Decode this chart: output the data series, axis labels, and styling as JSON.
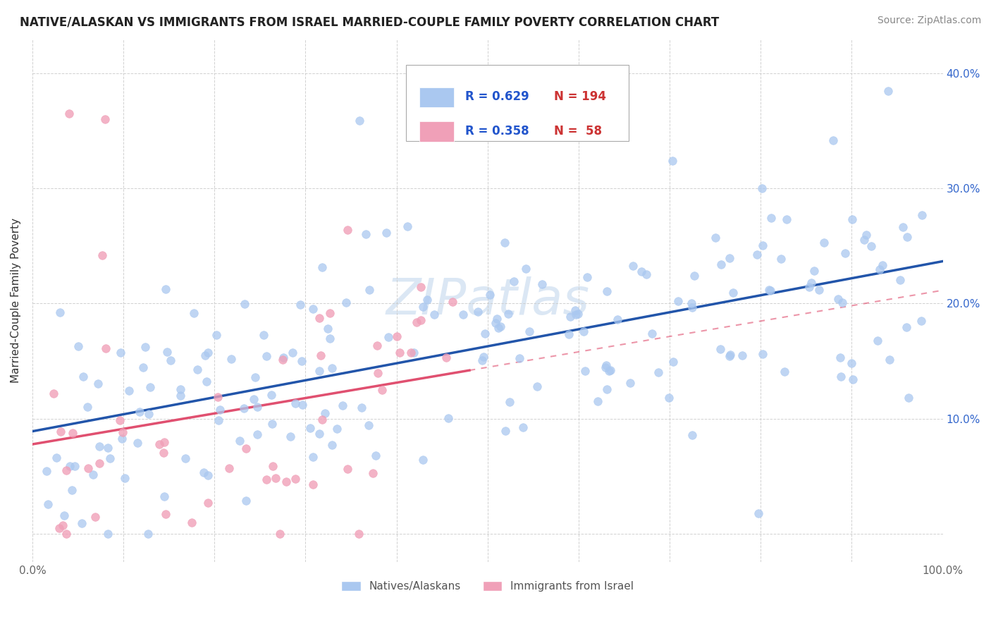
{
  "title": "NATIVE/ALASKAN VS IMMIGRANTS FROM ISRAEL MARRIED-COUPLE FAMILY POVERTY CORRELATION CHART",
  "source": "Source: ZipAtlas.com",
  "ylabel": "Married-Couple Family Poverty",
  "xlim": [
    0.0,
    1.0
  ],
  "ylim": [
    -0.025,
    0.43
  ],
  "xticks": [
    0.0,
    0.1,
    0.2,
    0.3,
    0.4,
    0.5,
    0.6,
    0.7,
    0.8,
    0.9,
    1.0
  ],
  "yticks": [
    0.0,
    0.1,
    0.2,
    0.3,
    0.4
  ],
  "yticklabels": [
    "",
    "10.0%",
    "20.0%",
    "30.0%",
    "40.0%"
  ],
  "blue_color": "#aac8f0",
  "pink_color": "#f0a0b8",
  "blue_line_color": "#2255aa",
  "pink_line_color": "#e05070",
  "legend_blue_R": "0.629",
  "legend_blue_N": "194",
  "legend_pink_R": "0.358",
  "legend_pink_N": "58",
  "watermark_text": "ZIPatlas",
  "watermark_color": "#ccddf0",
  "blue_r": 0.629,
  "pink_r": 0.358,
  "blue_n": 194,
  "pink_n": 58
}
